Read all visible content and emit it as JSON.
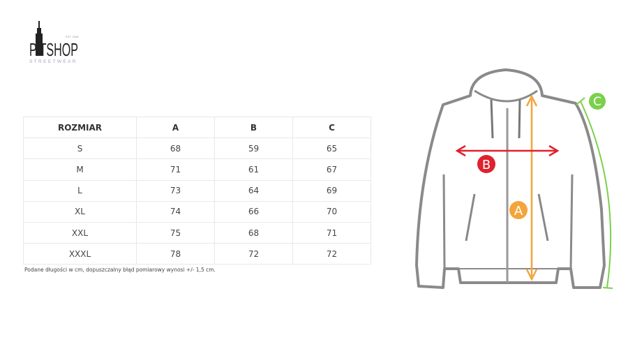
{
  "logo": {
    "text": "PATSHOP",
    "tagline": "STREETWEAR",
    "est": "EST. 2008"
  },
  "table": {
    "headers": [
      "ROZMIAR",
      "A",
      "B",
      "C"
    ],
    "rows": [
      [
        "S",
        "68",
        "59",
        "65"
      ],
      [
        "M",
        "71",
        "61",
        "67"
      ],
      [
        "L",
        "73",
        "64",
        "69"
      ],
      [
        "XL",
        "74",
        "66",
        "70"
      ],
      [
        "XXL",
        "75",
        "68",
        "71"
      ],
      [
        "XXXL",
        "78",
        "72",
        "72"
      ]
    ]
  },
  "note": "Podane długości w cm, dopuszczalny błąd pomiarowy wynosi +/- 1,5 cm.",
  "diagram": {
    "labels": {
      "a": "A",
      "b": "B",
      "c": "C"
    },
    "colors": {
      "a": "#f3a53a",
      "b": "#e0212e",
      "c": "#7bd04c",
      "outline": "#8a8a8a"
    }
  }
}
